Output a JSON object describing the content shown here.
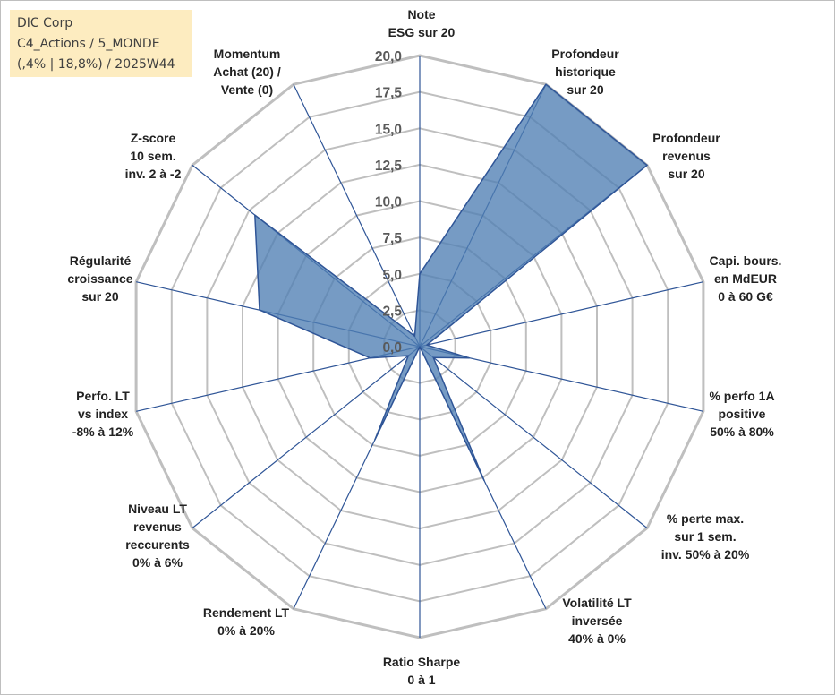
{
  "title_box": {
    "line1": "DIC Corp",
    "line2": "C4_Actions / 5_MONDE",
    "line3": "(,4% | 18,8%) / 2025W44"
  },
  "chart_data": {
    "type": "radar",
    "r_range": [
      0,
      20
    ],
    "r_ticks": [
      "0,0",
      "2,5",
      "5,0",
      "7,5",
      "10,0",
      "12,5",
      "15,0",
      "17,5",
      "20,0"
    ],
    "axes": [
      {
        "label": [
          "Note",
          "ESG sur 20"
        ]
      },
      {
        "label": [
          "Profondeur",
          "historique",
          "sur 20"
        ]
      },
      {
        "label": [
          "Profondeur",
          "revenus",
          "sur 20"
        ]
      },
      {
        "label": [
          "Capi. bours.",
          "en MdEUR",
          "0 à 60 G€"
        ]
      },
      {
        "label": [
          "% perfo 1A",
          "positive",
          "50% à 80%"
        ]
      },
      {
        "label": [
          "% perte max.",
          "sur 1 sem.",
          "inv. 50% à 20%"
        ]
      },
      {
        "label": [
          "Volatilité LT",
          "inversée",
          "40% à 0%"
        ]
      },
      {
        "label": [
          "Ratio Sharpe",
          "0 à 1"
        ]
      },
      {
        "label": [
          "Rendement LT",
          "0% à 20%"
        ]
      },
      {
        "label": [
          "Niveau LT",
          "revenus",
          "reccurents",
          "0% à 6%"
        ]
      },
      {
        "label": [
          "Perfo. LT",
          "vs index",
          "-8% à 12%"
        ]
      },
      {
        "label": [
          "Régularité",
          "croissance",
          "sur 20"
        ]
      },
      {
        "label": [
          "Z-score",
          "10 sem.",
          "inv. 2 à -2"
        ]
      },
      {
        "label": [
          "Momentum",
          "Achat (20) /",
          "Vente (0)"
        ]
      }
    ],
    "series": [
      {
        "name": "DIC Corp",
        "values": [
          5.0,
          20.0,
          20.0,
          0.5,
          3.5,
          1.2,
          10.2,
          0.0,
          7.1,
          1.0,
          3.5,
          11.3,
          14.5,
          0.8
        ]
      }
    ],
    "colors": {
      "fill": "#4f7fb4",
      "stroke": "#2f5597",
      "grid": "#bfbfbf",
      "spoke": "#2f5597"
    }
  }
}
